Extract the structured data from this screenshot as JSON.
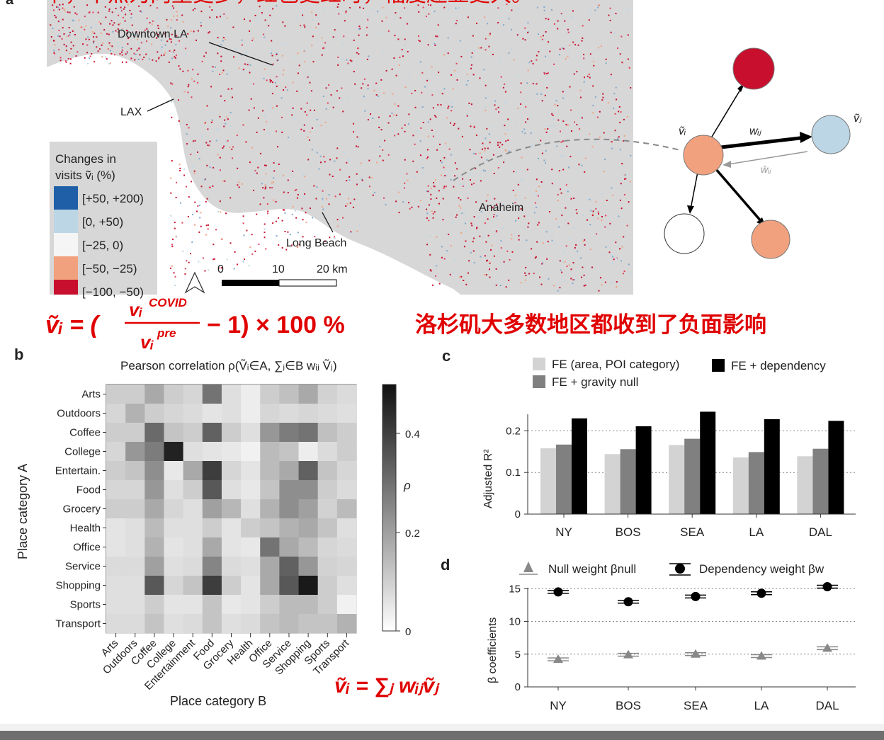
{
  "annotations": {
    "top_heading": "平，中点为向量更多，红色更红时，幅度越显更大。",
    "formula_lhs": "ṽᵢ = (",
    "formula_num": "vᵢ",
    "formula_num_sup": "COVID",
    "formula_den": "vᵢ",
    "formula_den_sup": "pre",
    "formula_rhs": "− 1) × 100 %",
    "formula_note": "洛杉矶大多数地区都收到了负面影响",
    "sum_formula": "ṽᵢ = ∑ⱼ wᵢⱼṽⱼ"
  },
  "panel_a": {
    "label": "a",
    "places": [
      "Downtown LA",
      "LAX",
      "Long Beach",
      "Anaheim"
    ],
    "legend_title_1": "Changes in",
    "legend_title_2": "visits ṽᵢ (%)",
    "legend": [
      {
        "label": "[+50, +200)",
        "color": "#1f5fa8"
      },
      {
        "label": "[0, +50)",
        "color": "#bcd6e6"
      },
      {
        "label": "[−25, 0)",
        "color": "#f5f5f5"
      },
      {
        "label": "[−50, −25)",
        "color": "#f1a17e"
      },
      {
        "label": "[−100, −50)",
        "color": "#c8102e"
      }
    ],
    "scale": [
      "0",
      "10",
      "20 km"
    ],
    "network": {
      "vi": "ṽᵢ",
      "vj": "ṽⱼ",
      "wij": "wᵢⱼ",
      "wij_hat": "ŵᵢⱼ"
    }
  },
  "panel_b": {
    "label": "b",
    "title": "Pearson correlation ρ(Ṽᵢ∈A, ∑ⱼ∈B wᵢⱼ Ṽⱼ)",
    "ylabel": "Place category A",
    "xlabel": "Place category B",
    "categories": [
      "Arts",
      "Outdoors",
      "Coffee",
      "College",
      "Entertain.",
      "Food",
      "Grocery",
      "Health",
      "Office",
      "Service",
      "Shopping",
      "Sports",
      "Transport"
    ],
    "x_categories": [
      "Arts",
      "Outdoors",
      "Coffee",
      "College",
      "Entertainment",
      "Food",
      "Grocery",
      "Health",
      "Office",
      "Service",
      "Shopping",
      "Sports",
      "Transport"
    ],
    "colorbar_label": "ρ",
    "colorbar_ticks": [
      "0.4",
      "0.2",
      "0"
    ]
  },
  "panel_c": {
    "label": "c"
  },
  "panel_d": {
    "label": "d"
  },
  "chart_data": [
    {
      "type": "heatmap",
      "title": "Pearson correlation ρ(Ṽᵢ∈A, ∑ⱼ∈B wᵢⱼ Ṽⱼ)",
      "xlabel": "Place category B",
      "ylabel": "Place category A",
      "rows": [
        "Arts",
        "Outdoors",
        "Coffee",
        "College",
        "Entertain.",
        "Food",
        "Grocery",
        "Health",
        "Office",
        "Service",
        "Shopping",
        "Sports",
        "Transport"
      ],
      "cols": [
        "Arts",
        "Outdoors",
        "Coffee",
        "College",
        "Entertainment",
        "Food",
        "Grocery",
        "Health",
        "Office",
        "Service",
        "Shopping",
        "Sports",
        "Transport"
      ],
      "zlim": [
        0,
        0.5
      ],
      "values": [
        [
          0.1,
          0.1,
          0.18,
          0.1,
          0.08,
          0.3,
          0.06,
          0.03,
          0.1,
          0.13,
          0.18,
          0.09,
          0.07
        ],
        [
          0.08,
          0.16,
          0.1,
          0.08,
          0.07,
          0.05,
          0.06,
          0.03,
          0.08,
          0.07,
          0.08,
          0.07,
          0.06
        ],
        [
          0.1,
          0.1,
          0.32,
          0.12,
          0.1,
          0.34,
          0.1,
          0.06,
          0.22,
          0.28,
          0.3,
          0.13,
          0.1
        ],
        [
          0.08,
          0.22,
          0.28,
          0.48,
          0.06,
          0.05,
          0.04,
          0.02,
          0.14,
          0.12,
          0.03,
          0.07,
          0.1
        ],
        [
          0.1,
          0.12,
          0.24,
          0.04,
          0.18,
          0.42,
          0.08,
          0.05,
          0.14,
          0.18,
          0.34,
          0.12,
          0.08
        ],
        [
          0.08,
          0.08,
          0.22,
          0.06,
          0.1,
          0.36,
          0.06,
          0.04,
          0.12,
          0.24,
          0.24,
          0.1,
          0.07
        ],
        [
          0.1,
          0.1,
          0.18,
          0.08,
          0.06,
          0.2,
          0.15,
          0.06,
          0.16,
          0.24,
          0.2,
          0.09,
          0.14
        ],
        [
          0.05,
          0.06,
          0.14,
          0.06,
          0.06,
          0.1,
          0.05,
          0.1,
          0.12,
          0.16,
          0.18,
          0.12,
          0.06
        ],
        [
          0.05,
          0.06,
          0.16,
          0.05,
          0.06,
          0.18,
          0.05,
          0.04,
          0.3,
          0.18,
          0.14,
          0.08,
          0.07
        ],
        [
          0.07,
          0.07,
          0.2,
          0.06,
          0.07,
          0.26,
          0.07,
          0.06,
          0.18,
          0.34,
          0.22,
          0.09,
          0.08
        ],
        [
          0.06,
          0.06,
          0.36,
          0.08,
          0.12,
          0.42,
          0.1,
          0.05,
          0.18,
          0.36,
          0.5,
          0.1,
          0.06
        ],
        [
          0.06,
          0.06,
          0.1,
          0.05,
          0.05,
          0.12,
          0.04,
          0.05,
          0.1,
          0.14,
          0.14,
          0.1,
          0.02
        ],
        [
          0.07,
          0.07,
          0.12,
          0.06,
          0.07,
          0.12,
          0.06,
          0.07,
          0.12,
          0.14,
          0.12,
          0.12,
          0.16
        ]
      ]
    },
    {
      "type": "bar",
      "ylabel": "Adjusted R²",
      "ylim": [
        0,
        0.25
      ],
      "yticks": [
        "0",
        "0.1",
        "0.2"
      ],
      "categories": [
        "NY",
        "BOS",
        "SEA",
        "LA",
        "DAL"
      ],
      "series": [
        {
          "name": "FE (area, POI category)",
          "color": "#d3d3d3",
          "values": [
            0.158,
            0.144,
            0.166,
            0.136,
            0.139
          ]
        },
        {
          "name": "FE + gravity null",
          "color": "#808080",
          "values": [
            0.167,
            0.156,
            0.181,
            0.149,
            0.157
          ]
        },
        {
          "name": "FE + dependency",
          "color": "#000000",
          "values": [
            0.23,
            0.211,
            0.246,
            0.228,
            0.224
          ]
        }
      ]
    },
    {
      "type": "scatter",
      "ylabel": "β coefficients",
      "ylim": [
        0,
        16
      ],
      "yticks": [
        "0",
        "5",
        "10",
        "15"
      ],
      "categories": [
        "NY",
        "BOS",
        "SEA",
        "LA",
        "DAL"
      ],
      "series": [
        {
          "name": "Null weight βnull",
          "marker": "triangle",
          "values": [
            4.2,
            4.9,
            5.0,
            4.7,
            5.9
          ]
        },
        {
          "name": "Dependency weight βw",
          "marker": "circle",
          "values": [
            14.5,
            13.0,
            13.8,
            14.3,
            15.3
          ]
        }
      ]
    }
  ]
}
